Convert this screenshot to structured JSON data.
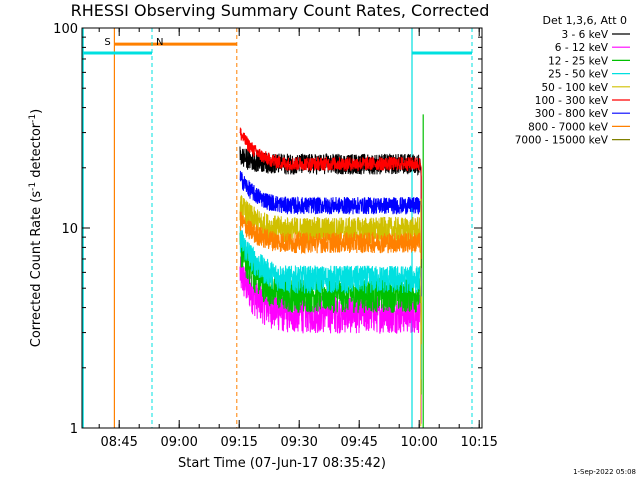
{
  "chart_data": {
    "type": "line",
    "title": "RHESSI Observing Summary Count Rates, Corrected",
    "ylabel": "Corrected Count Rate (s",
    "ylabel_sup1": "-1",
    "ylabel_mid": " detector",
    "ylabel_sup2": "-1",
    "ylabel_end": ")",
    "xlabel": "Start Time (07-Jun-17 08:35:42)",
    "yscale": "log",
    "ylim": [
      1,
      100
    ],
    "y_ticks": [
      {
        "value": 1,
        "label": "1"
      },
      {
        "value": 10,
        "label": "10"
      },
      {
        "value": 100,
        "label": "100"
      }
    ],
    "x_range_minutes": [
      0,
      100
    ],
    "x_ticks": [
      {
        "t": 9.3,
        "label": "08:45"
      },
      {
        "t": 24.3,
        "label": "09:00"
      },
      {
        "t": 39.3,
        "label": "09:15"
      },
      {
        "t": 54.3,
        "label": "09:30"
      },
      {
        "t": 69.3,
        "label": "09:45"
      },
      {
        "t": 84.3,
        "label": "10:00"
      },
      {
        "t": 99.3,
        "label": "10:15"
      }
    ],
    "legend_title": "Det 1,3,6, Att 0",
    "series": [
      {
        "name": "3 - 6 keV",
        "color": "#000000",
        "start": 23.0,
        "end": 21.0,
        "end_min": 18.0,
        "spread": 0.12
      },
      {
        "name": "6 - 12 keV",
        "color": "#ff00ff",
        "start": 6.0,
        "end": 3.8,
        "end_min": 3.0,
        "spread": 0.22
      },
      {
        "name": "12 - 25 keV",
        "color": "#00c000",
        "start": 8.0,
        "end": 4.7,
        "end_min": 4.2,
        "spread": 0.2
      },
      {
        "name": "25 - 50 keV",
        "color": "#00e0e0",
        "start": 9.0,
        "end": 5.6,
        "end_min": 5.0,
        "spread": 0.16
      },
      {
        "name": "50 - 100 keV",
        "color": "#d0c000",
        "start": 13.0,
        "end": 9.8,
        "end_min": 8.5,
        "spread": 0.16
      },
      {
        "name": "100 - 300 keV",
        "color": "#ff0000",
        "start": 30.0,
        "end": 21.0,
        "end_min": 20.0,
        "spread": 0.08
      },
      {
        "name": "300 - 800 keV",
        "color": "#0000ff",
        "start": 18.0,
        "end": 13.0,
        "end_min": 13.0,
        "spread": 0.1
      },
      {
        "name": "800 - 7000 keV",
        "color": "#ff8000",
        "start": 11.0,
        "end": 8.5,
        "end_min": 7.5,
        "spread": 0.12
      },
      {
        "name": "7000 - 15000 keV",
        "color": "#808000",
        "start": 0,
        "end": 0,
        "end_min": 0,
        "spread": 0
      }
    ],
    "data_interval_minutes": [
      39.5,
      84.5
    ],
    "markers": [
      {
        "label": "S",
        "color": "#ff8000",
        "solid_at": 8.1,
        "dashed_at": 38.7,
        "bar_from": 8.1,
        "bar_to": 38.7,
        "bar_value": 83
      },
      {
        "label": "N",
        "color": "#00e0e0",
        "dashed_at": 17.5,
        "solid_from": 0,
        "solid_to": 17.5,
        "bar_value": 75,
        "solid_at2": 82.5,
        "dashed_at2": 97.5,
        "bar2_from": 82.5,
        "bar2_to": 97.5
      }
    ],
    "green_spike": {
      "t": 85.3,
      "value": 37,
      "min": 1.0
    },
    "grid": false,
    "legend_position": "top-right"
  },
  "footer_timestamp": "1-Sep-2022 05:08"
}
